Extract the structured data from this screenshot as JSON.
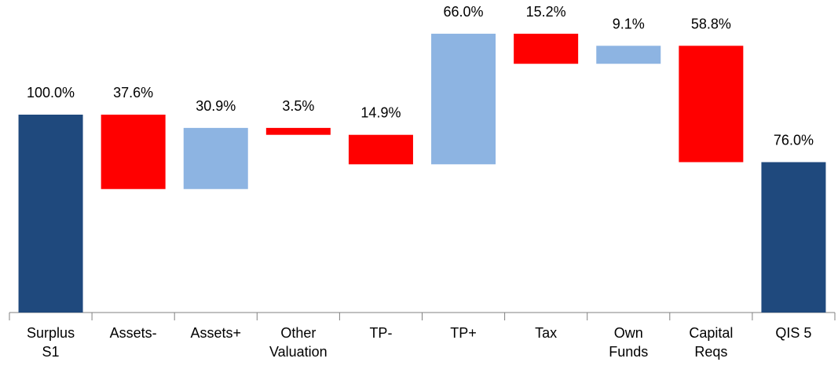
{
  "chart_data": {
    "type": "waterfall",
    "categories": [
      "Surplus S1",
      "Assets-",
      "Assets+",
      "Other Valuation",
      "TP-",
      "TP+",
      "Tax",
      "Own Funds",
      "Capital Reqs",
      "QIS 5"
    ],
    "values": [
      100.0,
      37.6,
      30.9,
      3.5,
      14.9,
      66.0,
      15.2,
      9.1,
      58.8,
      76.0
    ],
    "value_labels": [
      "100.0%",
      "37.6%",
      "30.9%",
      "3.5%",
      "14.9%",
      "66.0%",
      "15.2%",
      "9.1%",
      "58.8%",
      "76.0%"
    ],
    "measures": [
      "total",
      "decrease",
      "increase",
      "decrease",
      "decrease",
      "increase",
      "decrease",
      "increase",
      "decrease",
      "total"
    ],
    "colors": {
      "total": "#1f497d",
      "decrease": "#ff0000",
      "increase": "#8db4e2"
    },
    "ylim": [
      0,
      150
    ]
  }
}
